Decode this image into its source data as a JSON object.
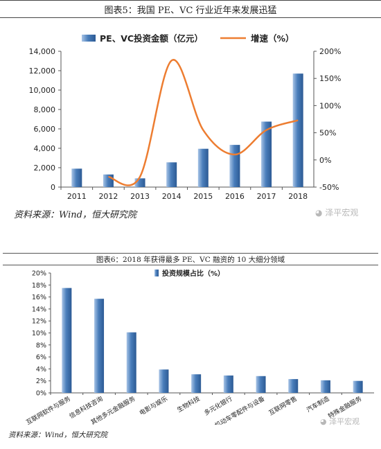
{
  "chart1": {
    "title": "图表5：我国 PE、VC 行业近年来发展迅猛",
    "source": "资料来源：Wind，恒大研究院",
    "watermark": "泽平宏观",
    "legend_bar": "PE、VC投资金额（亿元）",
    "legend_line": "增速（%）"
  },
  "chart2": {
    "title": "图表6：2018 年获得最多 PE、VC 融资的 10 大细分领域",
    "source": "资料来源：Wind，恒大研究院",
    "watermark": "泽平宏观",
    "legend_bar": "投资规模占比（%）"
  },
  "colors": {
    "bar": "#4a7ebb",
    "bar_light": "#a8c4e6",
    "line": "#ed7d31"
  },
  "chart_data": [
    {
      "type": "bar",
      "title": "图表5：我国 PE、VC 行业近年来发展迅猛",
      "categories": [
        "2011",
        "2012",
        "2013",
        "2014",
        "2015",
        "2016",
        "2017",
        "2018"
      ],
      "series": [
        {
          "name": "PE、VC投资金额（亿元）",
          "type": "bar",
          "axis": "left",
          "values": [
            1900,
            1300,
            900,
            2550,
            3950,
            4350,
            6750,
            11700
          ]
        },
        {
          "name": "增速（%）",
          "type": "line",
          "axis": "right",
          "values": [
            null,
            -31,
            -31,
            183,
            55,
            10,
            55,
            73
          ]
        }
      ],
      "yleft_ticks": [
        "0",
        "2,000",
        "4,000",
        "6,000",
        "8,000",
        "10,000",
        "12,000",
        "14,000"
      ],
      "ylim_left": [
        0,
        14000
      ],
      "yright_ticks": [
        "-50%",
        "0%",
        "50%",
        "100%",
        "150%",
        "200%"
      ],
      "ylim_right": [
        -50,
        200
      ],
      "legend_position": "top"
    },
    {
      "type": "bar",
      "title": "图表6：2018 年获得最多 PE、VC 融资的 10 大细分领域",
      "categories": [
        "互联网软件与服务",
        "信息科技咨询",
        "其他多元金融服务",
        "电影与娱乐",
        "生物科技",
        "多元化银行",
        "机动车零配件与设备",
        "互联网零售",
        "汽车制造",
        "特殊金融服务"
      ],
      "series": [
        {
          "name": "投资规模占比（%）",
          "values": [
            17.5,
            15.7,
            10.1,
            3.9,
            3.1,
            2.9,
            2.8,
            2.3,
            2.1,
            2.0
          ]
        }
      ],
      "y_ticks": [
        "0%",
        "2%",
        "4%",
        "6%",
        "8%",
        "10%",
        "12%",
        "14%",
        "16%",
        "18%",
        "20%"
      ],
      "ylim": [
        0,
        20
      ],
      "legend_position": "top"
    }
  ]
}
